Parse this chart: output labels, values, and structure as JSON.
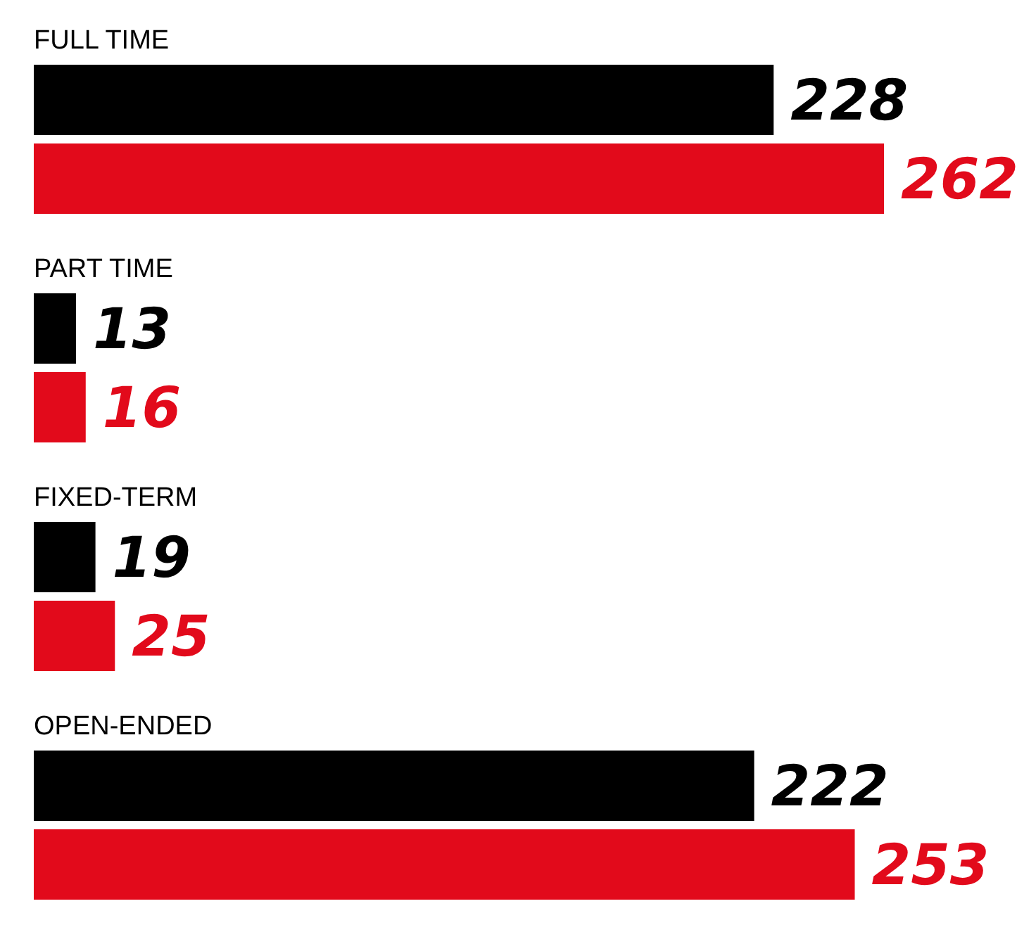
{
  "chart_data": {
    "type": "bar",
    "orientation": "horizontal",
    "data_labels": true,
    "categories": [
      "FULL TIME",
      "PART TIME",
      "FIXED-TERM",
      "OPEN-ENDED"
    ],
    "series": [
      {
        "color": "#000000",
        "values": [
          228,
          13,
          19,
          222
        ]
      },
      {
        "color": "#e20a1b",
        "values": [
          262,
          16,
          25,
          253
        ]
      }
    ]
  }
}
